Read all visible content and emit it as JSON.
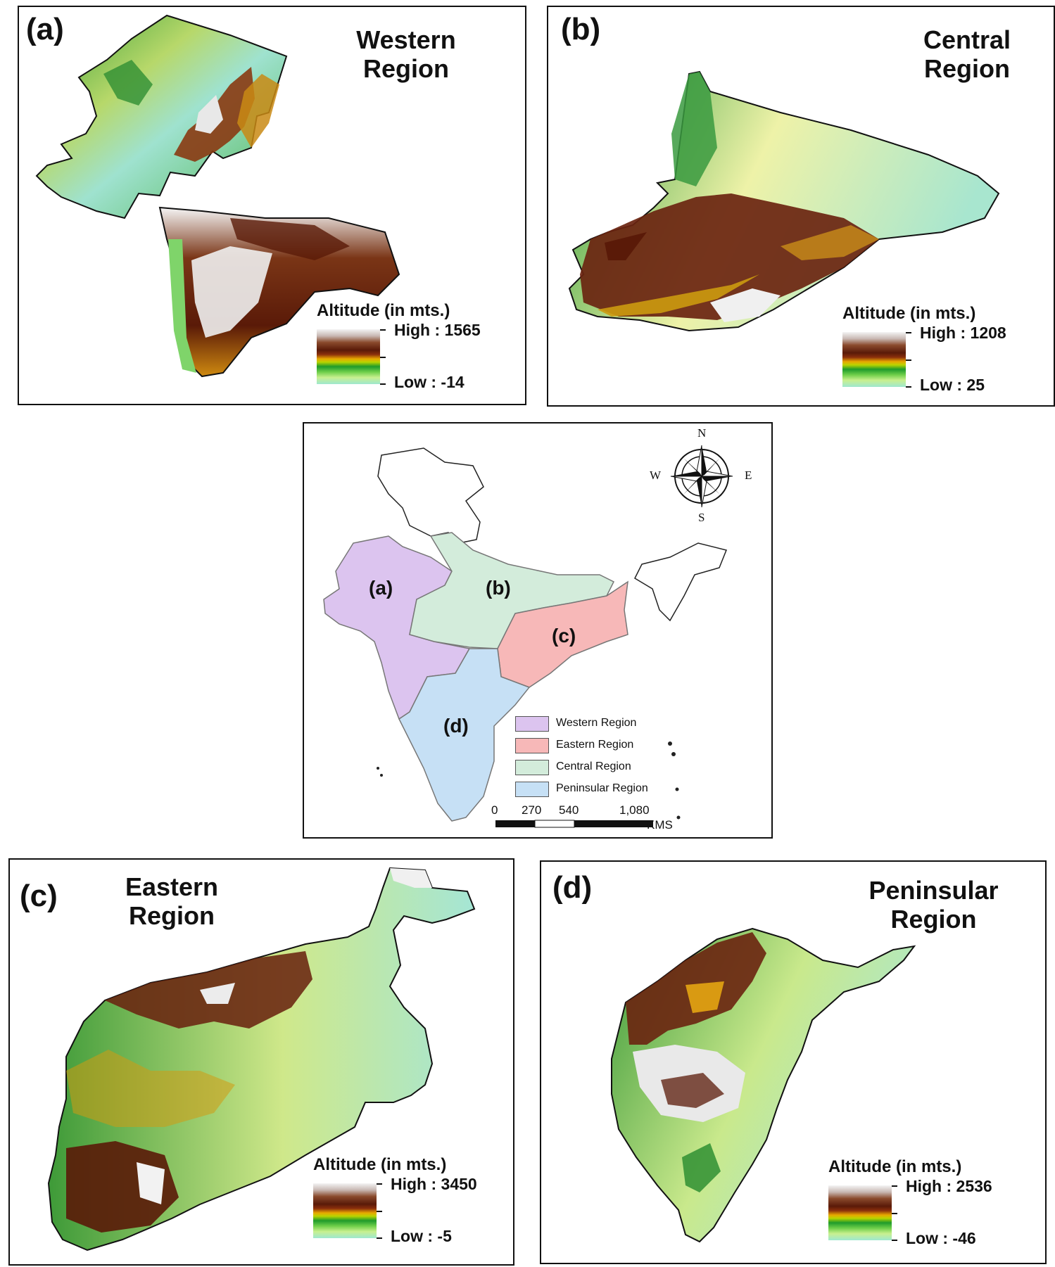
{
  "panels": {
    "a": {
      "label": "(a)",
      "title_line1": "Western",
      "title_line2": "Region",
      "legend_title": "Altitude (in mts.)",
      "high": "High : 1565",
      "low": "Low : -14"
    },
    "b": {
      "label": "(b)",
      "title_line1": "Central",
      "title_line2": "Region",
      "legend_title": "Altitude (in mts.)",
      "high": "High : 1208",
      "low": "Low : 25"
    },
    "c": {
      "label": "(c)",
      "title_line1": "Eastern",
      "title_line2": "Region",
      "legend_title": "Altitude (in mts.)",
      "high": "High : 3450",
      "low": "Low : -5"
    },
    "d": {
      "label": "(d)",
      "title_line1": "Peninsular",
      "title_line2": "Region",
      "legend_title": "Altitude (in mts.)",
      "high": "High : 2536",
      "low": "Low : -46"
    }
  },
  "center_map": {
    "region_labels": [
      "(a)",
      "(b)",
      "(c)",
      "(d)"
    ],
    "legend": [
      {
        "label": "Western Region",
        "color": "#dcc4ef"
      },
      {
        "label": "Eastern Region",
        "color": "#f7b8b8"
      },
      {
        "label": "Central Region",
        "color": "#d3ecdb"
      },
      {
        "label": "Peninsular Region",
        "color": "#c6e0f5"
      }
    ],
    "scale": {
      "ticks": [
        "0",
        "270",
        "540",
        "1,080"
      ],
      "unit": "KMS"
    },
    "compass": {
      "n": "N",
      "s": "S",
      "e": "E",
      "w": "W"
    }
  },
  "colors": {
    "western": "#dcc4ef",
    "eastern": "#f7b8b8",
    "central": "#d3ecdb",
    "peninsular": "#c6e0f5"
  }
}
